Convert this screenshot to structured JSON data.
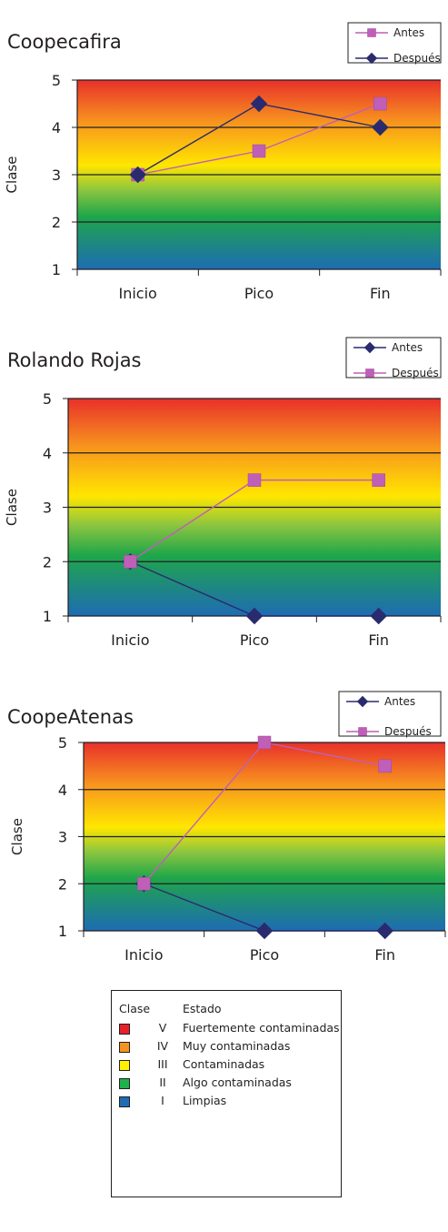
{
  "chart_data": [
    {
      "type": "line",
      "title": "Coopecafira",
      "ylabel": "Clase",
      "categories": [
        "Inicio",
        "Pico",
        "Fin"
      ],
      "ylim": [
        1,
        5
      ],
      "yticks": [
        1,
        2,
        3,
        4,
        5
      ],
      "series": [
        {
          "name": "Antes",
          "values": [
            3,
            3.5,
            4.5
          ],
          "color": "#bf5fb8",
          "marker": "square"
        },
        {
          "name": "Después",
          "values": [
            3,
            4.5,
            4
          ],
          "color": "#2a2b6e",
          "marker": "diamond"
        }
      ]
    },
    {
      "type": "line",
      "title": "Rolando Rojas",
      "ylabel": "Clase",
      "categories": [
        "Inicio",
        "Pico",
        "Fin"
      ],
      "ylim": [
        1,
        5
      ],
      "yticks": [
        1,
        2,
        3,
        4,
        5
      ],
      "series": [
        {
          "name": "Antes",
          "values": [
            2,
            1,
            1
          ],
          "color": "#2a2b6e",
          "marker": "diamond"
        },
        {
          "name": "Después",
          "values": [
            2,
            3.5,
            3.5
          ],
          "color": "#bf5fb8",
          "marker": "square"
        }
      ]
    },
    {
      "type": "line",
      "title": "CoopeAtenas",
      "ylabel": "Clase",
      "categories": [
        "Inicio",
        "Pico",
        "Fin"
      ],
      "ylim": [
        1,
        5
      ],
      "yticks": [
        1,
        2,
        3,
        4,
        5
      ],
      "series": [
        {
          "name": "Antes",
          "values": [
            2,
            1,
            1
          ],
          "color": "#2a2b6e",
          "marker": "diamond"
        },
        {
          "name": "Después",
          "values": [
            2,
            5,
            4.5
          ],
          "color": "#bf5fb8",
          "marker": "square"
        }
      ]
    }
  ],
  "key": {
    "header_class": "Clase",
    "header_state": "Estado",
    "rows": [
      {
        "class": "V",
        "state": "Fuertemente contaminadas",
        "color": "#e8202a"
      },
      {
        "class": "IV",
        "state": "Muy contaminadas",
        "color": "#f39323"
      },
      {
        "class": "III",
        "state": "Contaminadas",
        "color": "#fff200"
      },
      {
        "class": "II",
        "state": "Algo contaminadas",
        "color": "#1fb24a"
      },
      {
        "class": "I",
        "state": "Limpias",
        "color": "#1e6cb3"
      }
    ]
  }
}
